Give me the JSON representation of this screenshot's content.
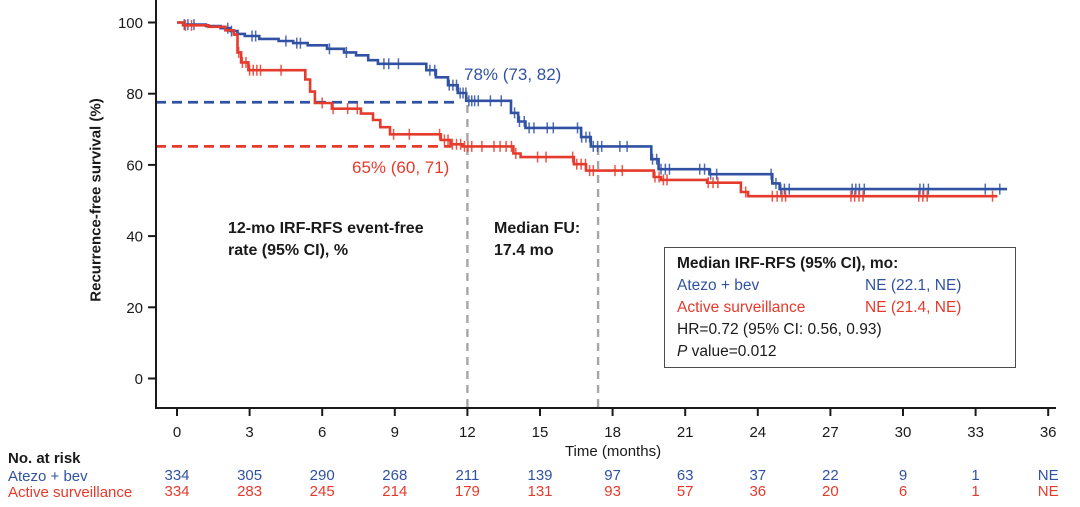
{
  "chart": {
    "y_axis_label": "Recurrence-free survival (%)",
    "x_axis_label": "Time (months)",
    "annotations": {
      "atezo_rate": "78% (73, 82)",
      "surveillance_rate": "65% (60, 71)",
      "event_free_line1": "12-mo IRF-RFS event-free",
      "event_free_line2": "rate (95% CI), %",
      "median_fu_line1": "Median FU:",
      "median_fu_line2": "17.4 mo"
    },
    "legend_box": {
      "title": "Median IRF-RFS (95% CI), mo:",
      "atezo_value": "NE (22.1, NE)",
      "surveillance_value": "NE (21.4, NE)",
      "hr_line": "HR=0.72 (95% CI: 0.56, 0.93)",
      "p_italic": "P",
      "p_rest": " value=0.012"
    },
    "risk_table_title": "No. at risk"
  },
  "chart_data": {
    "type": "line",
    "subtype": "kaplan-meier-step",
    "title": "",
    "xlabel": "Time (months)",
    "ylabel": "Recurrence-free survival (%)",
    "xlim": [
      0,
      36
    ],
    "ylim": [
      0,
      100
    ],
    "x_ticks": [
      0,
      3,
      6,
      9,
      12,
      15,
      18,
      21,
      24,
      27,
      30,
      33,
      36
    ],
    "y_ticks": [
      0,
      20,
      40,
      60,
      80,
      100
    ],
    "grid": false,
    "legend_position": "inside-right-bottom",
    "colors": {
      "axis": "#1a1a1a",
      "dashed_gray": "#a6a6a6"
    },
    "series": [
      {
        "id": "atezo-bev",
        "name": "Atezo + bev",
        "color": "#3152A3",
        "event_free_12mo": "78% (73, 82)",
        "median_rfs": "NE (22.1, NE)",
        "steps": [
          [
            0,
            100
          ],
          [
            0.25,
            99.4
          ],
          [
            1.2,
            99.0
          ],
          [
            1.8,
            98.4
          ],
          [
            2.2,
            97.6
          ],
          [
            2.5,
            96.8
          ],
          [
            2.8,
            96.2
          ],
          [
            3.4,
            95.4
          ],
          [
            4.2,
            94.8
          ],
          [
            4.8,
            94.2
          ],
          [
            5.4,
            93.6
          ],
          [
            6.2,
            92.6
          ],
          [
            6.9,
            91.6
          ],
          [
            7.4,
            90.8
          ],
          [
            7.9,
            89.4
          ],
          [
            8.3,
            88.4
          ],
          [
            10.3,
            86.6
          ],
          [
            10.7,
            84.6
          ],
          [
            11.2,
            82.4
          ],
          [
            11.6,
            80.2
          ],
          [
            11.95,
            78.0
          ],
          [
            13.8,
            74.6
          ],
          [
            14.1,
            72.2
          ],
          [
            14.4,
            70.4
          ],
          [
            16.7,
            67.8
          ],
          [
            17.1,
            65.2
          ],
          [
            19.6,
            61.6
          ],
          [
            19.9,
            58.8
          ],
          [
            22.0,
            57.4
          ],
          [
            24.6,
            54.8
          ],
          [
            24.9,
            53.2
          ]
        ],
        "end_time": 34.3,
        "censor_times": [
          0.3,
          0.45,
          0.7,
          2.1,
          2.25,
          3.1,
          3.25,
          4.5,
          4.95,
          5.1,
          6.3,
          7.0,
          8.55,
          8.75,
          9.15,
          10.45,
          10.65,
          11.25,
          11.4,
          11.55,
          11.7,
          11.82,
          11.94,
          12.06,
          12.18,
          12.3,
          12.45,
          12.95,
          13.4,
          13.95,
          14.15,
          14.35,
          14.55,
          14.75,
          15.3,
          15.55,
          16.55,
          16.72,
          16.9,
          17.05,
          17.2,
          17.38,
          17.55,
          18.3,
          18.6,
          19.65,
          19.82,
          20.0,
          20.18,
          20.35,
          21.6,
          21.8,
          22.05,
          22.3,
          24.55,
          24.75,
          24.95,
          25.1,
          25.3,
          27.9,
          28.05,
          28.2,
          28.4,
          30.7,
          30.85,
          31.05,
          33.4,
          34.0
        ],
        "no_at_risk": [
          "334",
          "305",
          "290",
          "268",
          "211",
          "139",
          "97",
          "63",
          "37",
          "22",
          "9",
          "1",
          "NE"
        ]
      },
      {
        "id": "active-surveillance",
        "name": "Active surveillance",
        "color": "#E53A2C",
        "event_free_12mo": "65% (60, 71)",
        "median_rfs": "NE (21.4, NE)",
        "steps": [
          [
            0,
            100
          ],
          [
            0.25,
            99.2
          ],
          [
            1.3,
            98.8
          ],
          [
            2.0,
            97.8
          ],
          [
            2.35,
            96.6
          ],
          [
            2.5,
            91.6
          ],
          [
            2.65,
            88.8
          ],
          [
            2.95,
            86.6
          ],
          [
            5.3,
            84.0
          ],
          [
            5.5,
            80.6
          ],
          [
            5.7,
            77.4
          ],
          [
            6.4,
            75.8
          ],
          [
            7.6,
            74.4
          ],
          [
            8.1,
            72.6
          ],
          [
            8.4,
            70.6
          ],
          [
            8.8,
            68.6
          ],
          [
            10.9,
            67.0
          ],
          [
            11.3,
            65.8
          ],
          [
            11.8,
            65.2
          ],
          [
            13.9,
            63.2
          ],
          [
            14.2,
            62.2
          ],
          [
            16.4,
            60.2
          ],
          [
            16.9,
            58.4
          ],
          [
            19.7,
            56.6
          ],
          [
            20.0,
            55.8
          ],
          [
            21.9,
            55.0
          ],
          [
            23.3,
            52.4
          ],
          [
            23.6,
            51.2
          ]
        ],
        "end_time": 33.9,
        "censor_times": [
          0.35,
          0.6,
          2.55,
          2.7,
          2.85,
          3.0,
          3.15,
          3.3,
          3.45,
          4.3,
          6.0,
          6.45,
          7.05,
          7.45,
          8.95,
          9.6,
          10.85,
          11.05,
          11.2,
          11.38,
          11.55,
          11.72,
          11.88,
          12.02,
          12.18,
          12.6,
          13.1,
          13.35,
          13.6,
          13.82,
          14.0,
          14.9,
          15.25,
          16.35,
          16.52,
          16.7,
          16.88,
          17.05,
          17.2,
          18.1,
          18.4,
          19.75,
          19.92,
          20.1,
          20.25,
          21.95,
          22.15,
          22.35,
          23.5,
          24.6,
          24.8,
          25.0,
          25.15,
          27.85,
          28.0,
          28.18,
          28.35,
          30.65,
          30.82,
          31.0,
          33.7
        ],
        "no_at_risk": [
          "334",
          "283",
          "245",
          "214",
          "179",
          "131",
          "93",
          "57",
          "36",
          "20",
          "6",
          "1",
          "NE"
        ]
      }
    ],
    "dashed_horizontals": [
      {
        "y": 77.6,
        "x_to": 11.55,
        "color": "#3152A3"
      },
      {
        "y": 65.2,
        "x_to": 11.35,
        "color": "#E53A2C"
      }
    ],
    "dashed_verticals": [
      {
        "x": 12.0,
        "y_to": 79,
        "color": "#a6a6a6"
      },
      {
        "x": 17.4,
        "y_to": 66,
        "color": "#a6a6a6"
      }
    ],
    "hr": "HR=0.72 (95% CI: 0.56, 0.93)",
    "p_value": "P value=0.012",
    "median_followup": "17.4 mo"
  }
}
